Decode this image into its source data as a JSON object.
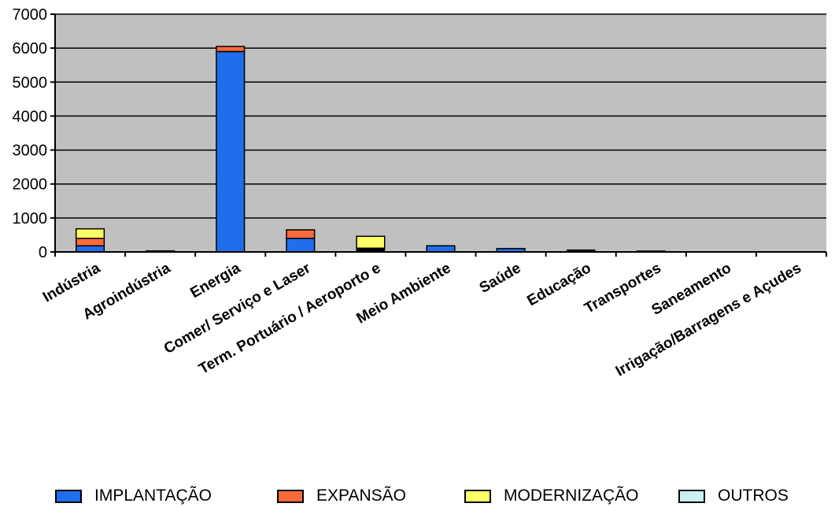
{
  "chart_data": {
    "type": "bar",
    "stacked": true,
    "categories": [
      "Indústria",
      "Agroindústria",
      "Energia",
      "Comer/ Serviço e Laser",
      "Term. Portuário / Aeroporto e",
      "Meio Ambiente",
      "Saúde",
      "Educação",
      "Transportes",
      "Saneamento",
      "Irrigação/Barragens e Açudes"
    ],
    "series": [
      {
        "name": "IMPLANTAÇÃO",
        "color": "#1f6fec",
        "values": [
          180,
          15,
          5900,
          400,
          0,
          180,
          100,
          0,
          10,
          0,
          0
        ]
      },
      {
        "name": "EXPANSÃO",
        "color": "#fb6a3a",
        "values": [
          220,
          0,
          150,
          250,
          0,
          0,
          0,
          0,
          0,
          0,
          0
        ]
      },
      {
        "name": "MODERNIZAÇÃO",
        "color": "#ffff66",
        "values": [
          280,
          0,
          0,
          0,
          350,
          0,
          0,
          0,
          0,
          0,
          0
        ]
      },
      {
        "name": "OUTROS",
        "color": "#c8f0f0",
        "values": [
          0,
          0,
          0,
          0,
          0,
          0,
          0,
          0,
          0,
          0,
          0
        ]
      }
    ],
    "extra_segments": [
      {
        "category": "Agroindústria",
        "value": 15,
        "color": "#000000"
      },
      {
        "category": "Term. Portuário / Aeroporto e",
        "value": 110,
        "color": "#000000"
      },
      {
        "category": "Educação",
        "value": 60,
        "color": "#000000"
      },
      {
        "category": "Transportes",
        "value": 15,
        "color": "#000000"
      }
    ],
    "ylim": [
      0,
      7000
    ],
    "yticks": [
      "0",
      "1000",
      "2000",
      "3000",
      "4000",
      "5000",
      "6000",
      "7000"
    ],
    "grid": true,
    "plot_background": "#c0c0c0",
    "legend_position": "bottom",
    "title": "",
    "xlabel": "",
    "ylabel": ""
  }
}
